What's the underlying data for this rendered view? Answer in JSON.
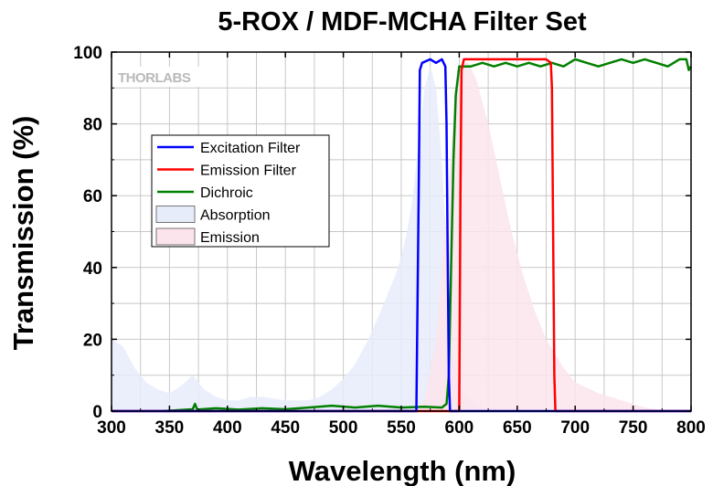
{
  "chart_data": {
    "type": "line",
    "title": "5-ROX / MDF-MCHA Filter Set",
    "xlabel": "Wavelength (nm)",
    "ylabel": "Transmission (%)",
    "xlim": [
      300,
      800
    ],
    "ylim": [
      0,
      100
    ],
    "xticks": [
      300,
      350,
      400,
      450,
      500,
      550,
      600,
      650,
      700,
      750,
      800
    ],
    "yticks": [
      0,
      20,
      40,
      60,
      80,
      100
    ],
    "grid": true,
    "legend_position": "upper-left",
    "watermark": "THORLABS",
    "series": [
      {
        "name": "Excitation Filter",
        "kind": "line",
        "color": "#0000ff",
        "points": [
          [
            300,
            0
          ],
          [
            560,
            0
          ],
          [
            563,
            0
          ],
          [
            565,
            60
          ],
          [
            566,
            95
          ],
          [
            568,
            97
          ],
          [
            575,
            98
          ],
          [
            580,
            97
          ],
          [
            585,
            98
          ],
          [
            588,
            96
          ],
          [
            589,
            80
          ],
          [
            590,
            45
          ],
          [
            591,
            10
          ],
          [
            592,
            0
          ],
          [
            800,
            0
          ]
        ]
      },
      {
        "name": "Emission Filter",
        "kind": "line",
        "color": "#ff0000",
        "points": [
          [
            300,
            0
          ],
          [
            598,
            0
          ],
          [
            600,
            0
          ],
          [
            601,
            60
          ],
          [
            602,
            95
          ],
          [
            604,
            98
          ],
          [
            620,
            98
          ],
          [
            640,
            98
          ],
          [
            660,
            98
          ],
          [
            675,
            98
          ],
          [
            679,
            97
          ],
          [
            680,
            90
          ],
          [
            681,
            50
          ],
          [
            682,
            10
          ],
          [
            683,
            0
          ],
          [
            800,
            0
          ]
        ]
      },
      {
        "name": "Dichroic",
        "kind": "line",
        "color": "#008000",
        "points": [
          [
            345,
            0
          ],
          [
            360,
            0.3
          ],
          [
            370,
            0.5
          ],
          [
            372,
            2
          ],
          [
            374,
            0.4
          ],
          [
            390,
            0.8
          ],
          [
            410,
            0.4
          ],
          [
            430,
            0.8
          ],
          [
            450,
            0.5
          ],
          [
            470,
            1
          ],
          [
            490,
            1.5
          ],
          [
            510,
            1
          ],
          [
            530,
            1.5
          ],
          [
            550,
            1
          ],
          [
            570,
            1.2
          ],
          [
            585,
            1
          ],
          [
            589,
            2
          ],
          [
            591,
            10
          ],
          [
            593,
            40
          ],
          [
            595,
            70
          ],
          [
            597,
            88
          ],
          [
            600,
            96
          ],
          [
            610,
            96
          ],
          [
            620,
            97
          ],
          [
            630,
            96
          ],
          [
            640,
            97
          ],
          [
            650,
            96
          ],
          [
            660,
            97
          ],
          [
            670,
            96
          ],
          [
            680,
            97
          ],
          [
            690,
            96
          ],
          [
            700,
            98
          ],
          [
            710,
            97
          ],
          [
            720,
            96
          ],
          [
            730,
            97
          ],
          [
            740,
            98
          ],
          [
            750,
            97
          ],
          [
            760,
            98
          ],
          [
            770,
            97
          ],
          [
            780,
            96
          ],
          [
            790,
            98
          ],
          [
            796,
            98
          ],
          [
            798,
            95
          ],
          [
            800,
            96
          ]
        ]
      },
      {
        "name": "Absorption",
        "kind": "area",
        "color": "#e6ecfa",
        "points": [
          [
            300,
            20
          ],
          [
            310,
            18
          ],
          [
            320,
            12
          ],
          [
            330,
            8
          ],
          [
            340,
            6
          ],
          [
            350,
            5
          ],
          [
            360,
            7
          ],
          [
            370,
            10
          ],
          [
            380,
            6
          ],
          [
            390,
            4
          ],
          [
            400,
            3
          ],
          [
            410,
            3
          ],
          [
            420,
            4
          ],
          [
            430,
            4
          ],
          [
            440,
            3.5
          ],
          [
            450,
            3
          ],
          [
            460,
            3
          ],
          [
            470,
            3
          ],
          [
            480,
            4
          ],
          [
            490,
            6
          ],
          [
            500,
            9
          ],
          [
            510,
            13
          ],
          [
            520,
            19
          ],
          [
            530,
            26
          ],
          [
            540,
            34
          ],
          [
            545,
            38
          ],
          [
            550,
            43
          ],
          [
            555,
            50
          ],
          [
            560,
            60
          ],
          [
            565,
            75
          ],
          [
            570,
            90
          ],
          [
            575,
            96
          ],
          [
            580,
            90
          ],
          [
            585,
            70
          ],
          [
            590,
            40
          ],
          [
            595,
            15
          ],
          [
            600,
            7
          ],
          [
            610,
            3
          ],
          [
            620,
            1
          ],
          [
            640,
            0.5
          ],
          [
            660,
            0
          ],
          [
            800,
            0
          ]
        ]
      },
      {
        "name": "Emission",
        "kind": "area",
        "color": "#fce4ec",
        "points": [
          [
            300,
            0
          ],
          [
            560,
            0
          ],
          [
            570,
            3
          ],
          [
            580,
            20
          ],
          [
            590,
            60
          ],
          [
            597,
            90
          ],
          [
            602,
            97
          ],
          [
            608,
            97
          ],
          [
            615,
            92
          ],
          [
            625,
            80
          ],
          [
            635,
            65
          ],
          [
            645,
            50
          ],
          [
            655,
            38
          ],
          [
            665,
            28
          ],
          [
            675,
            20
          ],
          [
            690,
            12
          ],
          [
            700,
            8
          ],
          [
            720,
            5
          ],
          [
            740,
            3
          ],
          [
            760,
            1
          ],
          [
            780,
            0
          ],
          [
            800,
            0
          ]
        ]
      }
    ]
  }
}
